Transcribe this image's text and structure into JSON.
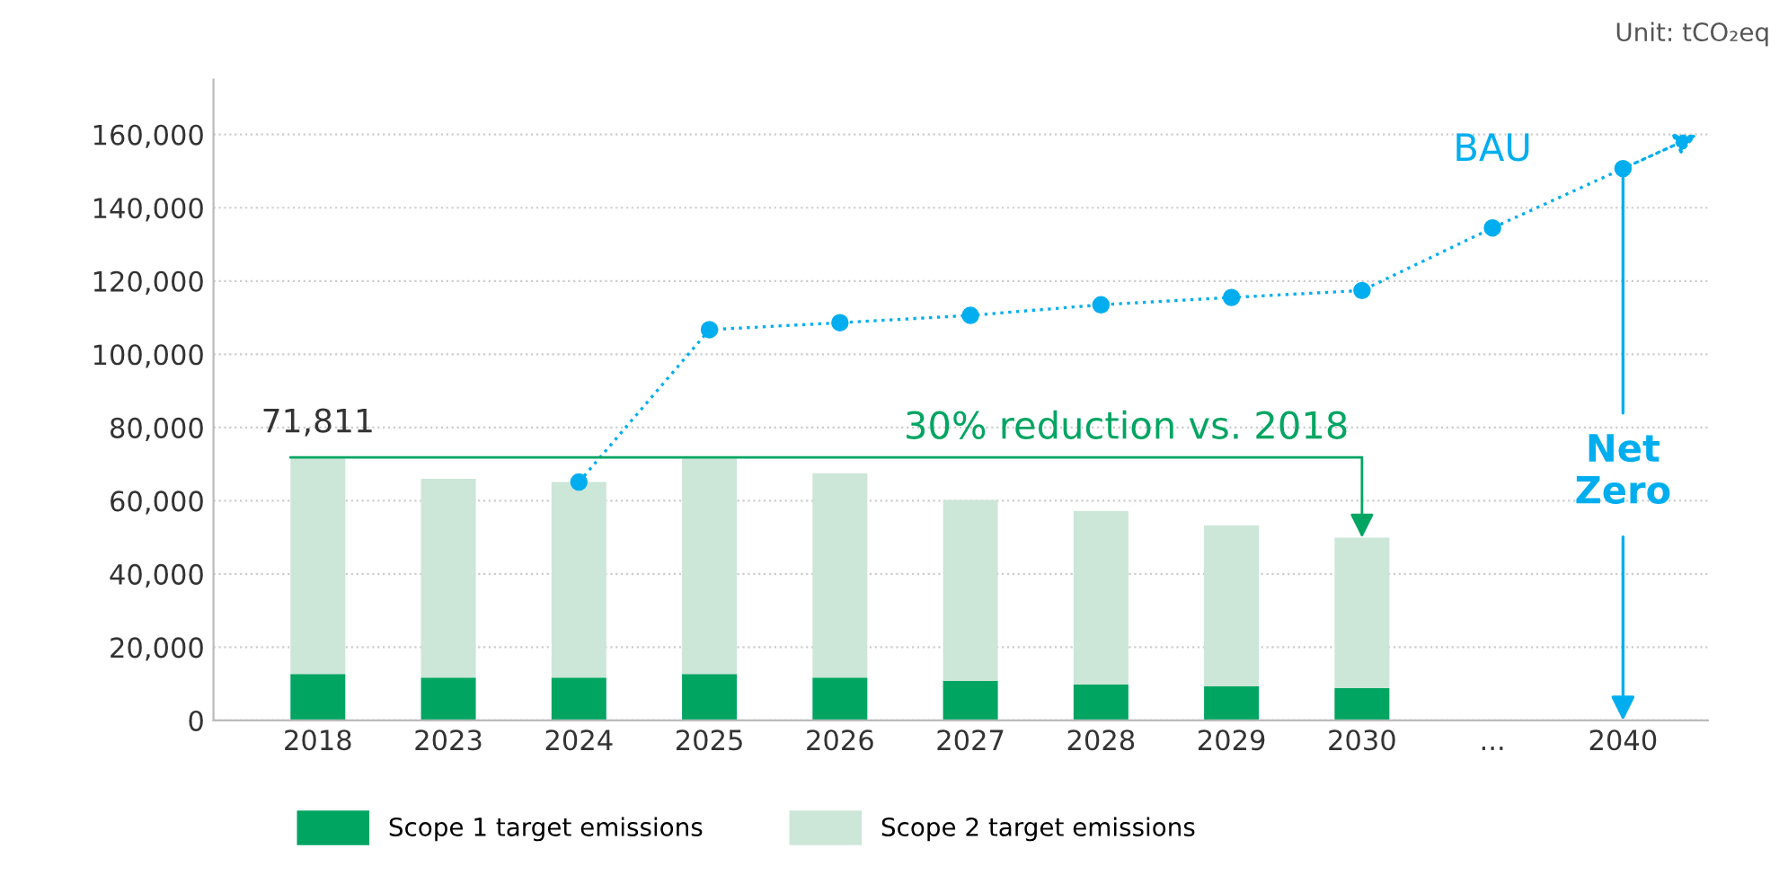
{
  "chart_data": {
    "type": "bar",
    "stacked": true,
    "categories": [
      "2018",
      "2023",
      "2024",
      "2025",
      "2026",
      "2027",
      "2028",
      "2029",
      "2030",
      "...",
      "2040"
    ],
    "series": [
      {
        "name": "Scope 1 target emissions",
        "color": "#00a562",
        "values": [
          12700,
          11700,
          11700,
          12700,
          11700,
          10800,
          9800,
          9300,
          8800,
          null,
          null
        ]
      },
      {
        "name": "Scope 2 target emissions",
        "color": "#cce6d8",
        "values": [
          59100,
          54300,
          53400,
          59000,
          55800,
          49400,
          47400,
          44000,
          41100,
          null,
          null
        ]
      },
      {
        "name": "BAU",
        "type": "line",
        "color": "#00aeef",
        "line_style": "dotted",
        "marker": "circle",
        "values": [
          null,
          null,
          65100,
          106700,
          108600,
          110600,
          113500,
          115500,
          117400,
          134500,
          150700
        ]
      }
    ],
    "ylim": [
      0,
      175000
    ],
    "yticks": [
      {
        "value": 0,
        "label": "0"
      },
      {
        "value": 20000,
        "label": "20,000"
      },
      {
        "value": 40000,
        "label": "40,000"
      },
      {
        "value": 60000,
        "label": "60,000"
      },
      {
        "value": 80000,
        "label": "80,000"
      },
      {
        "value": 100000,
        "label": "100,000"
      },
      {
        "value": 120000,
        "label": "120,000"
      },
      {
        "value": 140000,
        "label": "140,000"
      },
      {
        "value": 160000,
        "label": "160,000"
      }
    ],
    "grid": "y",
    "legend": "bottom",
    "annotations": [
      {
        "text": "71,811",
        "x": "2018",
        "y": 71811
      },
      {
        "text": "30% reduction vs. 2018",
        "x": "2030",
        "y": 49900
      },
      {
        "text": "Net\nZero",
        "x": "2040",
        "y": 150700
      },
      "Unit: tCO₂eq"
    ]
  }
}
